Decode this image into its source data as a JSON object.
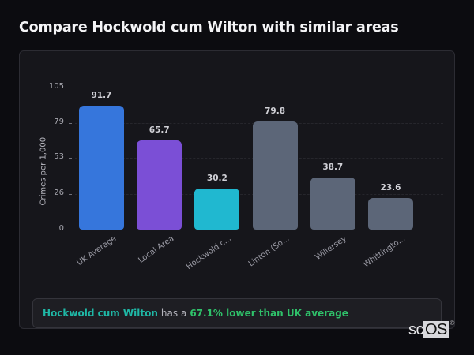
{
  "page": {
    "title": "Compare Hockwold cum Wilton with similar areas"
  },
  "summary": {
    "area_name": "Hockwold cum Wilton",
    "connector": "has a",
    "comparison": "67.1% lower than UK average"
  },
  "logo": {
    "prefix": "sc",
    "highlight": "OS",
    "mark": "®"
  },
  "chart_data": {
    "type": "bar",
    "title": "Compare Hockwold cum Wilton with similar areas",
    "xlabel": "",
    "ylabel": "Crimes per 1,000",
    "ylim": [
      0,
      105
    ],
    "yticks": [
      0,
      26,
      53,
      79,
      105
    ],
    "grid": true,
    "legend": "none",
    "categories": [
      "UK Average",
      "Local Area",
      "Hockwold c...",
      "Linton (So...",
      "Willersey",
      "Whittingto..."
    ],
    "values": [
      91.7,
      65.7,
      30.2,
      79.8,
      38.7,
      23.6
    ],
    "value_labels": [
      "91.7",
      "65.7",
      "30.2",
      "79.8",
      "38.7",
      "23.6"
    ],
    "colors": [
      "#3676dc",
      "#7b4fd6",
      "#20b8d0",
      "#5c6678",
      "#5c6678",
      "#5c6678"
    ]
  }
}
